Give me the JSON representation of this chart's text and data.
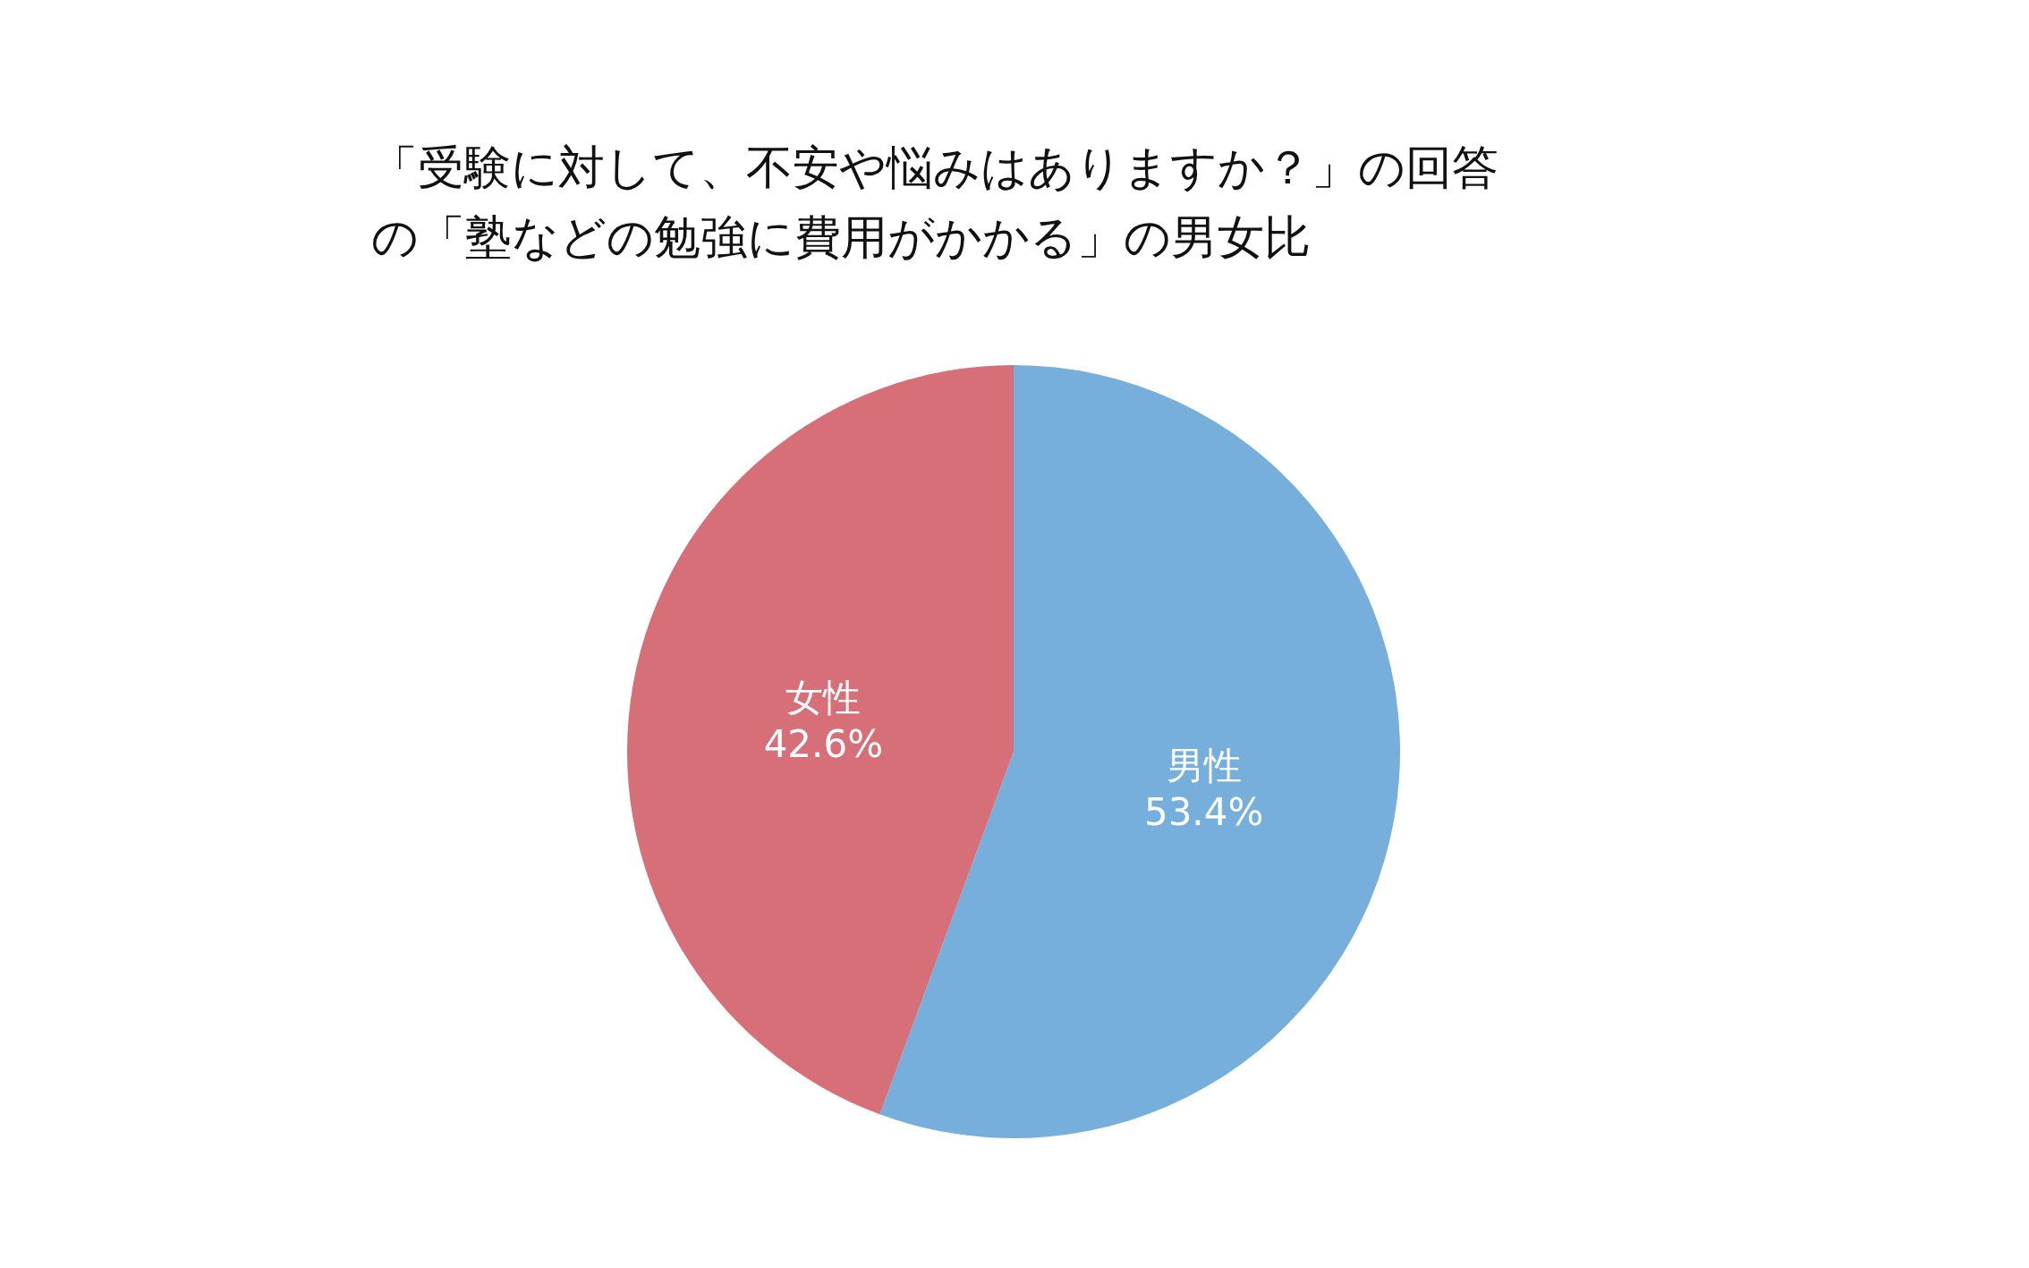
{
  "chart_data": {
    "type": "pie",
    "title": "「受験に対して、不安や悩みはありますか？」の回答の「塾などの勉強に費用がかかる」の男女比",
    "categories": [
      "男性",
      "女性"
    ],
    "values": [
      53.4,
      42.6
    ],
    "colors": [
      "#76afdb",
      "#d66f78"
    ],
    "value_labels": [
      "53.4%",
      "42.6%"
    ]
  }
}
